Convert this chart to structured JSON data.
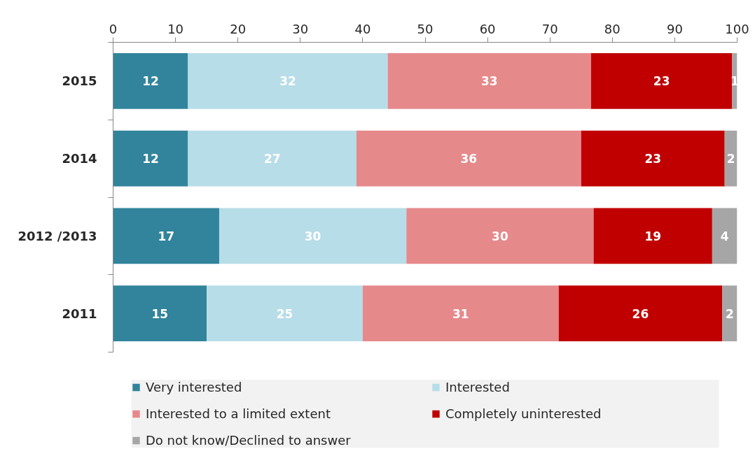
{
  "chart_data": {
    "type": "bar",
    "orientation": "horizontal",
    "stacked": true,
    "categories": [
      "2015",
      "2014",
      "2012 /2013",
      "2011"
    ],
    "xlim": [
      0,
      100
    ],
    "xticks": [
      0,
      10,
      20,
      30,
      40,
      50,
      60,
      70,
      80,
      90,
      100
    ],
    "legend": "bottom",
    "series": [
      {
        "name": "Very interested",
        "color": "#31849b",
        "values": [
          12,
          12,
          17,
          15
        ],
        "value_labels": [
          "12",
          "12",
          "17",
          "15"
        ]
      },
      {
        "name": "Interested",
        "color": "#b7dde8",
        "values": [
          32,
          27,
          30,
          25
        ],
        "value_labels": [
          "32",
          "27",
          "30",
          "25"
        ]
      },
      {
        "name": "Interested to a limited extent",
        "color": "#e6898b",
        "values": [
          32.6,
          36,
          30,
          31.4
        ],
        "value_labels": [
          "33",
          "36",
          "30",
          "31"
        ]
      },
      {
        "name": "Completely uninterested",
        "color": "#c00000",
        "values": [
          22.6,
          23,
          19,
          26.2
        ],
        "value_labels": [
          "23",
          "23",
          "19",
          "26"
        ]
      },
      {
        "name": "Do not know/Declined to answer",
        "color": "#a6a6a6",
        "values": [
          0.8,
          2,
          4,
          2.4
        ],
        "value_labels": [
          "1",
          "2",
          "4",
          "2"
        ]
      }
    ]
  }
}
